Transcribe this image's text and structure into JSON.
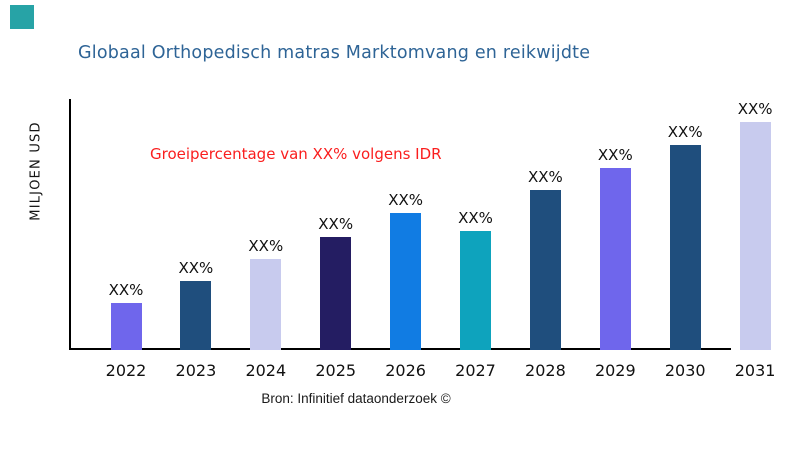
{
  "brand": {
    "mark_color": "#27a3a6"
  },
  "title": "Globaal Orthopedisch matras Marktomvang en reikwijdte",
  "title_color": "#2e6496",
  "annotation": "Groeipercentage van XX% volgens IDR",
  "annotation_color": "#fa1e1e",
  "footer": "Bron: Infinitief dataonderzoek ©",
  "chart_data": {
    "type": "bar",
    "title": "Globaal Orthopedisch matras Marktomvang en reikwijdte",
    "ylabel": "MILJOEN USD",
    "xlabel": "",
    "categories": [
      "2022",
      "2023",
      "2024",
      "2025",
      "2026",
      "2027",
      "2028",
      "2029",
      "2030",
      "2031"
    ],
    "values": [
      47,
      69,
      91,
      113,
      137,
      119,
      160,
      182,
      205,
      228
    ],
    "value_labels": [
      "XX%",
      "XX%",
      "XX%",
      "XX%",
      "XX%",
      "XX%",
      "XX%",
      "XX%",
      "XX%",
      "XX%"
    ],
    "bar_colors": [
      "#6f66ec",
      "#1f4e7d",
      "#c8cbee",
      "#241d62",
      "#117ce3",
      "#0ea3bd",
      "#1f4e7d",
      "#6f66ec",
      "#1f4e7d",
      "#c8cbee"
    ],
    "value_scale_note": "no numeric y-axis ticks shown; values are relative bar heights",
    "annotation": "Groeipercentage van XX% volgens IDR",
    "grid": false,
    "legend": false,
    "axis_color": "#000000"
  }
}
